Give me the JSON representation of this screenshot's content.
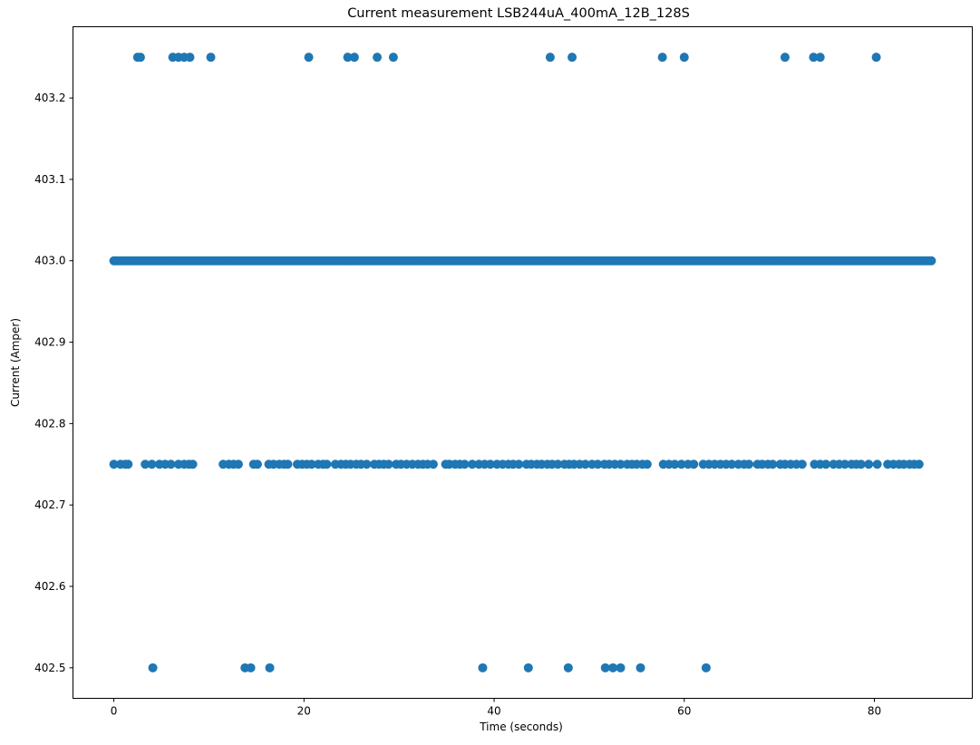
{
  "chart_data": {
    "type": "scatter",
    "title": "Current measurement LSB244uA_400mA_12B_128S",
    "xlabel": "Time (seconds)",
    "ylabel": "Current (Amper)",
    "xlim": [
      -4.3,
      90.3
    ],
    "ylim": [
      402.4625,
      403.2875
    ],
    "xticks": [
      0,
      20,
      40,
      60,
      80
    ],
    "xtick_labels": [
      "0",
      "20",
      "40",
      "60",
      "80"
    ],
    "yticks": [
      402.5,
      402.6,
      402.7,
      402.8,
      402.9,
      403.0,
      403.1,
      403.2
    ],
    "ytick_labels": [
      "402.5",
      "402.6",
      "402.7",
      "402.8",
      "402.9",
      "403.0",
      "403.1",
      "403.2"
    ],
    "grid": false,
    "marker_color": "#1f77b4",
    "series": [
      {
        "levels": [
          {
            "y": 403.25,
            "x": [
              2.5,
              2.8,
              6.2,
              6.8,
              7.4,
              8.0,
              10.2,
              20.5,
              24.6,
              25.3,
              27.7,
              29.4,
              45.9,
              48.2,
              57.7,
              60.0,
              70.6,
              73.6,
              74.3,
              80.2
            ]
          },
          {
            "y": 403.0,
            "range": [
              0.0,
              86.0
            ],
            "count": 360
          },
          {
            "y": 402.75,
            "x": [
              0.0,
              0.7,
              1.2,
              1.5,
              3.3,
              4.0,
              4.8,
              5.4,
              6.0,
              6.8,
              7.4,
              7.9,
              8.3,
              11.5,
              12.1,
              12.6,
              13.1,
              14.7,
              15.1,
              16.3,
              16.8,
              17.4,
              17.9,
              18.3,
              19.3,
              19.8,
              20.3,
              20.8,
              21.5,
              22.0,
              22.4,
              23.3,
              23.9,
              24.4,
              24.9,
              25.5,
              26.0,
              26.6,
              27.4,
              27.9,
              28.4,
              28.9,
              29.7,
              30.2,
              30.8,
              31.4,
              32.0,
              32.5,
              33.0,
              33.6,
              34.9,
              35.3,
              35.9,
              36.4,
              36.9,
              37.7,
              38.4,
              39.0,
              39.6,
              40.3,
              40.9,
              41.5,
              42.0,
              42.6,
              43.4,
              43.9,
              44.5,
              45.0,
              45.6,
              46.1,
              46.7,
              47.4,
              47.9,
              48.4,
              49.0,
              49.6,
              50.3,
              50.9,
              51.6,
              52.1,
              52.7,
              53.3,
              54.0,
              54.5,
              55.0,
              55.6,
              56.1,
              57.8,
              58.4,
              59.0,
              59.7,
              60.4,
              61.0,
              62.0,
              62.6,
              63.2,
              63.8,
              64.4,
              65.0,
              65.7,
              66.3,
              66.8,
              67.7,
              68.2,
              68.8,
              69.3,
              70.1,
              70.6,
              71.2,
              71.8,
              72.4,
              73.7,
              74.3,
              74.9,
              75.7,
              76.3,
              76.9,
              77.6,
              78.1,
              78.6,
              79.4,
              80.3,
              81.4,
              82.0,
              82.6,
              83.1,
              83.7,
              84.2,
              84.7
            ]
          },
          {
            "y": 402.5,
            "x": [
              4.1,
              13.8,
              14.4,
              16.4,
              38.8,
              43.6,
              47.8,
              51.7,
              52.5,
              53.3,
              55.4,
              62.3
            ]
          }
        ]
      }
    ]
  }
}
